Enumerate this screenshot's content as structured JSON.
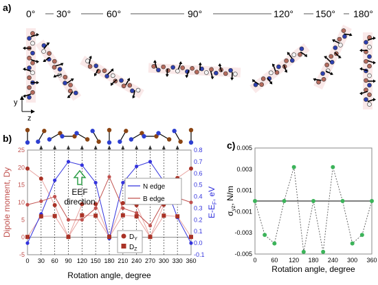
{
  "figure": {
    "panel_labels": [
      "a)",
      "b)",
      "c)"
    ],
    "angle_headers": [
      "0°",
      "30°",
      "60°",
      "90°",
      "120°",
      "150°",
      "180°"
    ],
    "axis_glyph": {
      "y": "y",
      "z": "z"
    }
  },
  "panel_b": {
    "xlabel": "Rotation angle, degree",
    "ylabel_left": "Dipole moment, Dy",
    "ylabel_right": "E-E",
    "ylabel_right_sub": "F",
    "ylabel_right_unit": ", eV",
    "annotation_line1": "EEF",
    "annotation_line2": "direction",
    "legend_energy": [
      "N edge",
      "B edge"
    ],
    "legend_dipole": [
      "D",
      "D"
    ],
    "legend_dipole_sub": [
      "Y",
      "Z"
    ],
    "colors": {
      "n_edge": "#3333dd",
      "b_edge": "#c0504d",
      "dipole_y": "#a93226",
      "dipole_z": "#a93226",
      "arrow": "#2e9e48"
    }
  },
  "panel_c": {
    "xlabel": "Rotation angle, degree",
    "ylabel": "σ",
    "ylabel_sub": "yz",
    "ylabel_unit": ", N/m",
    "colors": {
      "points": "#3cb35a",
      "line": "#555555"
    }
  },
  "chart_data": [
    {
      "type": "line",
      "name": "panel b",
      "x": [
        0,
        30,
        60,
        90,
        120,
        150,
        180,
        210,
        240,
        270,
        300,
        330,
        360
      ],
      "xticks": [
        0,
        30,
        60,
        90,
        120,
        150,
        180,
        210,
        240,
        270,
        300,
        330,
        360
      ],
      "ylim_left": [
        -5,
        25
      ],
      "yticks_left": [
        -5,
        0,
        5,
        10,
        15,
        20,
        25
      ],
      "ylim_right": [
        -0.1,
        0.8
      ],
      "yticks_right": [
        "-0.1",
        "0.0",
        "0.1",
        "0.2",
        "0.3",
        "0.4",
        "0.5",
        "0.6",
        "0.7",
        "0.8"
      ],
      "series": [
        {
          "name": "N edge",
          "axis": "right",
          "values": [
            0.0,
            0.25,
            0.54,
            0.7,
            0.67,
            0.52,
            0.04,
            0.52,
            0.66,
            0.7,
            0.53,
            0.22,
            0.0
          ]
        },
        {
          "name": "B edge",
          "axis": "right",
          "values": [
            0.33,
            0.36,
            0.4,
            0.2,
            0.2,
            0.3,
            0.57,
            0.3,
            0.26,
            0.15,
            0.36,
            0.39,
            0.35
          ]
        },
        {
          "name": "Dy",
          "axis": "left",
          "values": [
            19.7,
            16.8,
            9.2,
            0.1,
            9.5,
            9.5,
            0.2,
            9.8,
            9.2,
            0.1,
            9.3,
            17.0,
            19.7
          ]
        },
        {
          "name": "Dz",
          "axis": "left",
          "values": [
            0.1,
            6.0,
            6.1,
            0.1,
            6.3,
            6.2,
            0.1,
            6.3,
            6.0,
            0.1,
            6.2,
            6.0,
            0.1
          ]
        }
      ]
    },
    {
      "type": "scatter",
      "name": "panel c",
      "x": [
        0,
        30,
        60,
        90,
        120,
        150,
        180,
        210,
        240,
        270,
        300,
        330,
        360
      ],
      "xticks": [
        0,
        60,
        120,
        180,
        240,
        300,
        360
      ],
      "ylim": [
        -0.005,
        0.005
      ],
      "yticks": [
        "-0.005",
        "-0.003",
        "-0.001",
        "0.001",
        "0.003",
        "0.005"
      ],
      "values": [
        0.0,
        -0.0032,
        -0.004,
        0.0,
        0.0032,
        -0.0048,
        0.0,
        -0.0048,
        0.0032,
        0.0,
        -0.004,
        -0.0032,
        0.0
      ]
    }
  ]
}
